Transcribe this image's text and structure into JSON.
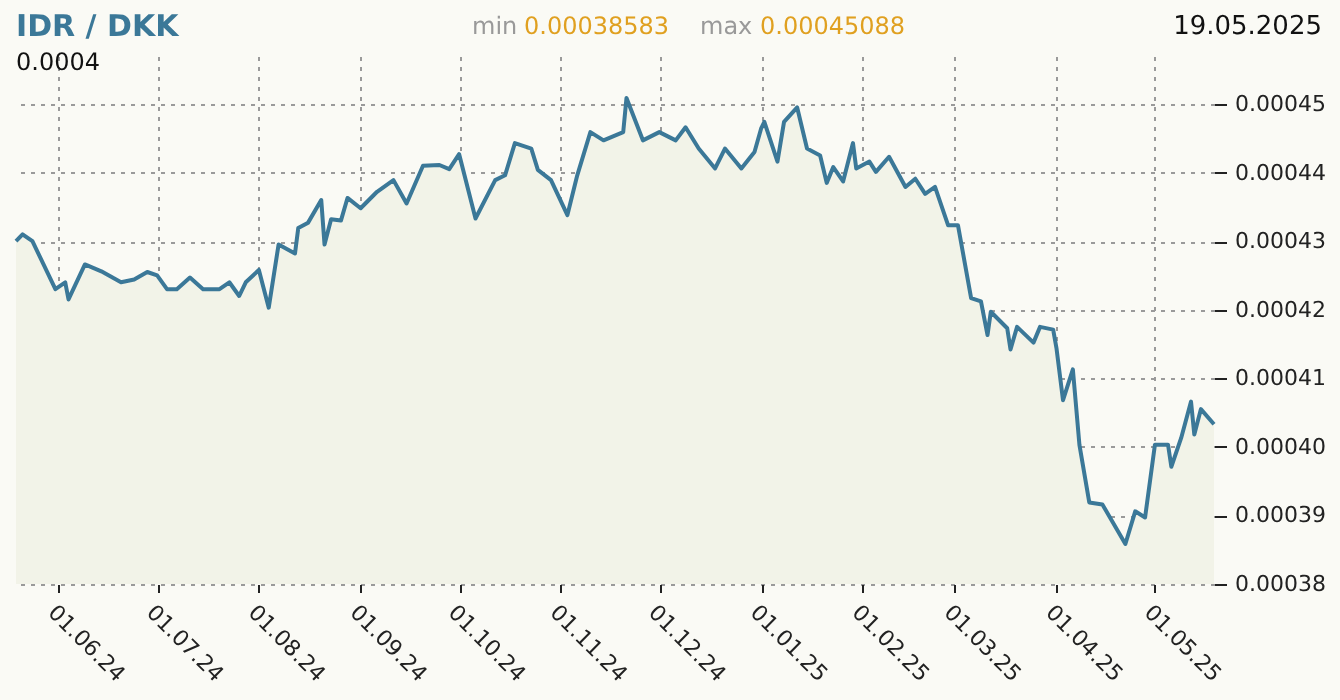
{
  "chart_data": {
    "type": "area",
    "title": "IDR / DKK",
    "annotations": [
      "min",
      "0.00038583",
      "max",
      "0.00045088",
      "19.05.2025",
      "0.0004"
    ],
    "series": [
      {
        "color": "#3b7898",
        "x": [
          "2024-05-19",
          "2024-05-21",
          "2024-05-24",
          "2024-05-31",
          "2024-06-03",
          "2024-06-04",
          "2024-06-09",
          "2024-06-14",
          "2024-06-20",
          "2024-06-24",
          "2024-06-28",
          "2024-07-01",
          "2024-07-04",
          "2024-07-07",
          "2024-07-11",
          "2024-07-15",
          "2024-07-20",
          "2024-07-23",
          "2024-07-26",
          "2024-07-28",
          "2024-08-01",
          "2024-08-04",
          "2024-08-07",
          "2024-08-12",
          "2024-08-13",
          "2024-08-16",
          "2024-08-20",
          "2024-08-21",
          "2024-08-23",
          "2024-08-26",
          "2024-08-28",
          "2024-09-01",
          "2024-09-06",
          "2024-09-11",
          "2024-09-15",
          "2024-09-20",
          "2024-09-25",
          "2024-09-28",
          "2024-10-01",
          "2024-10-06",
          "2024-10-12",
          "2024-10-15",
          "2024-10-18",
          "2024-10-23",
          "2024-10-25",
          "2024-10-29",
          "2024-11-03",
          "2024-11-06",
          "2024-11-10",
          "2024-11-14",
          "2024-11-20",
          "2024-11-21",
          "2024-11-26",
          "2024-12-01",
          "2024-12-06",
          "2024-12-09",
          "2024-12-13",
          "2024-12-18",
          "2024-12-21",
          "2024-12-26",
          "2024-12-30",
          "2025-01-01",
          "2025-01-02",
          "2025-01-06",
          "2025-01-08",
          "2025-01-12",
          "2025-01-15",
          "2025-01-19",
          "2025-01-21",
          "2025-01-23",
          "2025-01-26",
          "2025-01-29",
          "2025-01-30",
          "2025-02-03",
          "2025-02-05",
          "2025-02-09",
          "2025-02-14",
          "2025-02-17",
          "2025-02-20",
          "2025-02-23",
          "2025-02-27",
          "2025-03-02",
          "2025-03-06",
          "2025-03-09",
          "2025-03-11",
          "2025-03-12",
          "2025-03-17",
          "2025-03-18",
          "2025-03-20",
          "2025-03-25",
          "2025-03-27",
          "2025-03-31",
          "2025-04-01",
          "2025-04-03",
          "2025-04-06",
          "2025-04-08",
          "2025-04-11",
          "2025-04-15",
          "2025-04-22",
          "2025-04-25",
          "2025-04-28",
          "2025-05-01",
          "2025-05-05",
          "2025-05-06",
          "2025-05-09",
          "2025-05-12",
          "2025-05-13",
          "2025-05-15",
          "2025-05-19"
        ],
        "values": [
          0.00043,
          0.000431,
          0.00043,
          0.000423,
          0.000424,
          0.0004215,
          0.0004266,
          0.0004256,
          0.000424,
          0.0004244,
          0.0004255,
          0.000425,
          0.000423,
          0.000423,
          0.0004247,
          0.000423,
          0.000423,
          0.000424,
          0.000422,
          0.000424,
          0.0004258,
          0.0004203,
          0.0004295,
          0.0004282,
          0.0004319,
          0.0004327,
          0.000436,
          0.0004295,
          0.0004332,
          0.000433,
          0.0004363,
          0.0004348,
          0.0004372,
          0.0004389,
          0.0004355,
          0.000441,
          0.0004411,
          0.0004405,
          0.0004427,
          0.0004333,
          0.0004389,
          0.0004396,
          0.0004443,
          0.0004435,
          0.0004404,
          0.0004389,
          0.0004338,
          0.0004396,
          0.0004459,
          0.0004447,
          0.0004459,
          0.00045088,
          0.0004447,
          0.0004459,
          0.0004447,
          0.0004466,
          0.0004435,
          0.0004406,
          0.0004435,
          0.0004406,
          0.000443,
          0.0004464,
          0.0004474,
          0.0004416,
          0.0004474,
          0.0004495,
          0.0004435,
          0.0004425,
          0.0004385,
          0.0004408,
          0.0004387,
          0.0004443,
          0.0004406,
          0.0004416,
          0.0004401,
          0.0004423,
          0.0004379,
          0.0004391,
          0.0004369,
          0.0004379,
          0.0004323,
          0.0004323,
          0.0004217,
          0.0004212,
          0.0004163,
          0.0004197,
          0.0004173,
          0.0004142,
          0.0004175,
          0.0004152,
          0.0004175,
          0.0004171,
          0.0004144,
          0.0004068,
          0.0004113,
          0.0004003,
          0.0003919,
          0.0003916,
          0.00038583,
          0.0003906,
          0.0003897,
          0.0004003,
          0.0004003,
          0.0003971,
          0.0004013,
          0.0004066,
          0.0004018,
          0.0004055,
          0.0004033
        ]
      }
    ],
    "xlim": [
      "2024-05-19",
      "2025-05-19"
    ],
    "xticks": [
      {
        "value": "2024-06-01",
        "label": "01.06.24"
      },
      {
        "value": "2024-07-01",
        "label": "01.07.24"
      },
      {
        "value": "2024-08-01",
        "label": "01.08.24"
      },
      {
        "value": "2024-09-01",
        "label": "01.09.24"
      },
      {
        "value": "2024-10-01",
        "label": "01.10.24"
      },
      {
        "value": "2024-11-01",
        "label": "01.11.24"
      },
      {
        "value": "2024-12-01",
        "label": "01.12.24"
      },
      {
        "value": "2025-01-01",
        "label": "01.01.25"
      },
      {
        "value": "2025-02-01",
        "label": "01.02.25"
      },
      {
        "value": "2025-03-01",
        "label": "01.03.25"
      },
      {
        "value": "2025-04-01",
        "label": "01.04.25"
      },
      {
        "value": "2025-05-01",
        "label": "01.05.25"
      }
    ],
    "ylim": [
      0.00038,
      0.000457
    ],
    "yticks": [
      {
        "value": 0.00038,
        "label": "0.00038"
      },
      {
        "value": 0.00039,
        "label": "0.00039"
      },
      {
        "value": 0.0004,
        "label": "0.00040"
      },
      {
        "value": 0.00041,
        "label": "0.00041"
      },
      {
        "value": 0.00042,
        "label": "0.00042"
      },
      {
        "value": 0.00043,
        "label": "0.00043"
      },
      {
        "value": 0.00044,
        "label": "0.00044"
      },
      {
        "value": 0.00045,
        "label": "0.00045"
      }
    ],
    "grid": true
  }
}
